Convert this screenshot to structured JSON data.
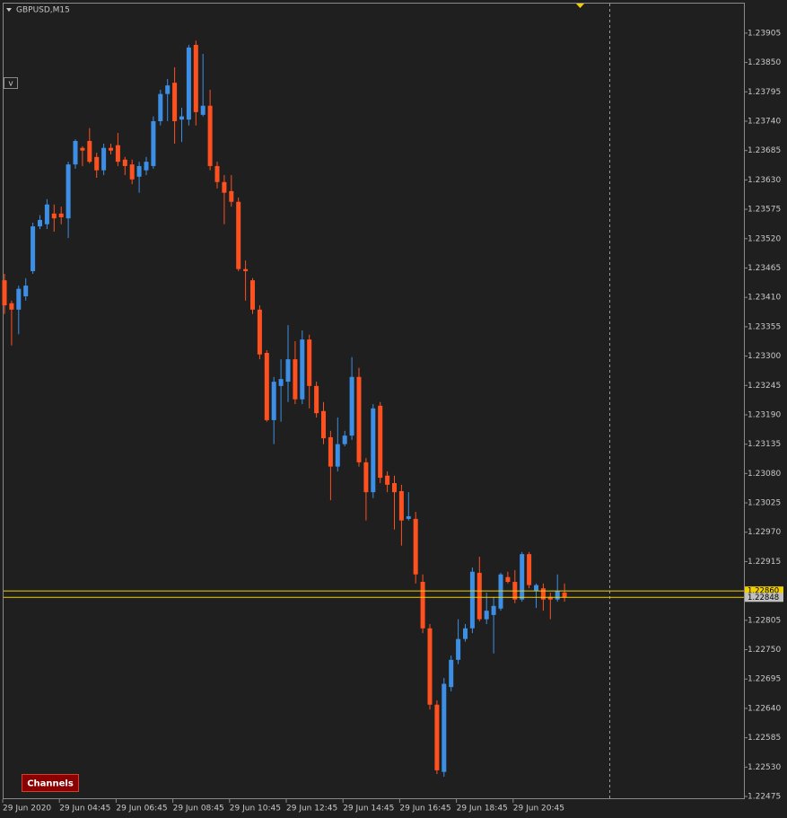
{
  "chart_data": {
    "type": "candlestick",
    "title": "GBPUSD,M15",
    "categories": [
      "29 Jun 2020",
      null,
      null,
      null,
      null,
      null,
      null,
      null,
      "29 Jun 04:45",
      null,
      null,
      null,
      null,
      null,
      null,
      null,
      "29 Jun 06:45",
      null,
      null,
      null,
      null,
      null,
      null,
      null,
      "29 Jun 08:45",
      null,
      null,
      null,
      null,
      null,
      null,
      null,
      "29 Jun 10:45",
      null,
      null,
      null,
      null,
      null,
      null,
      null,
      "29 Jun 12:45",
      null,
      null,
      null,
      null,
      null,
      null,
      null,
      "29 Jun 14:45",
      null,
      null,
      null,
      null,
      null,
      null,
      null,
      "29 Jun 16:45",
      null,
      null,
      null,
      null,
      null,
      null,
      null,
      "29 Jun 18:45",
      null,
      null,
      null,
      null,
      null,
      null,
      null,
      "29 Jun 20:45",
      null,
      null,
      null,
      null,
      null,
      null,
      null
    ],
    "open": [
      1.23442,
      1.23399,
      1.23387,
      1.23412,
      1.23459,
      1.23543,
      1.23547,
      1.23567,
      1.23567,
      1.23558,
      1.23659,
      1.2369,
      1.23703,
      1.23673,
      1.23648,
      1.2369,
      1.23695,
      1.23668,
      1.23659,
      1.23636,
      1.23648,
      1.23656,
      1.2374,
      1.23791,
      1.23812,
      1.23743,
      1.23743,
      1.23883,
      1.23752,
      1.23769,
      1.23656,
      1.23626,
      1.23609,
      1.23589,
      1.23463,
      1.23442,
      1.23387,
      1.23306,
      1.2318,
      1.23244,
      1.23252,
      1.23294,
      1.23219,
      1.23331,
      1.23244,
      1.23197,
      1.23148,
      1.23093,
      1.23135,
      1.23151,
      1.23261,
      1.23101,
      1.23045,
      1.23207,
      1.23076,
      1.23062,
      1.23047,
      1.22995,
      1.22995,
      1.22877,
      1.2279,
      1.22647,
      1.22521,
      1.2268,
      1.22731,
      1.2277,
      1.2279,
      1.22894,
      1.22807,
      1.22815,
      1.22827,
      1.22886,
      1.22877,
      1.22844,
      1.22929,
      1.2286,
      1.22865,
      1.22849,
      1.22844,
      1.22857
    ],
    "high": [
      1.23454,
      1.23404,
      1.23432,
      1.23446,
      1.2355,
      1.23564,
      1.23594,
      1.23584,
      1.2358,
      1.23664,
      1.23706,
      1.23693,
      1.23727,
      1.23681,
      1.23698,
      1.23698,
      1.23718,
      1.23673,
      1.23668,
      1.23664,
      1.23673,
      1.23749,
      1.23799,
      1.23819,
      1.23841,
      1.23765,
      1.23883,
      1.23891,
      1.23866,
      1.23799,
      1.23664,
      1.23639,
      1.23639,
      1.23597,
      1.23479,
      1.23446,
      1.23395,
      1.23311,
      1.23261,
      1.23294,
      1.23358,
      1.23328,
      1.23348,
      1.2334,
      1.23252,
      1.23214,
      1.2316,
      1.23185,
      1.2316,
      1.23298,
      1.23278,
      1.23109,
      1.2321,
      1.23214,
      1.23084,
      1.23076,
      1.23059,
      1.23045,
      1.23008,
      1.22891,
      1.22798,
      1.22655,
      1.22697,
      1.22739,
      1.22807,
      1.22798,
      1.22904,
      1.22924,
      1.22857,
      1.22849,
      1.22894,
      1.22896,
      1.22899,
      1.22933,
      1.22933,
      1.22874,
      1.22874,
      1.22857,
      1.22891,
      1.22874
    ],
    "low": [
      1.23379,
      1.2332,
      1.23341,
      1.23404,
      1.23454,
      1.23538,
      1.23538,
      1.23533,
      1.23547,
      1.23521,
      1.23651,
      1.23656,
      1.23661,
      1.23634,
      1.23639,
      1.23678,
      1.23656,
      1.23639,
      1.23622,
      1.23606,
      1.23639,
      1.23651,
      1.23732,
      1.2374,
      1.23698,
      1.23701,
      1.23732,
      1.23732,
      1.23749,
      1.23648,
      1.23614,
      1.23547,
      1.2358,
      1.23459,
      1.23404,
      1.23379,
      1.23294,
      1.23177,
      1.23135,
      1.23177,
      1.23214,
      1.2321,
      1.2321,
      1.23202,
      1.23185,
      1.23135,
      1.2303,
      1.23084,
      1.23131,
      1.23143,
      1.23093,
      1.22992,
      1.23034,
      1.23062,
      1.23045,
      1.22975,
      1.22945,
      1.22992,
      1.22874,
      1.22781,
      1.22638,
      1.22517,
      1.22512,
      1.22672,
      1.22723,
      1.22765,
      1.22781,
      1.22803,
      1.22798,
      1.22743,
      1.22823,
      1.22874,
      1.22837,
      1.2284,
      1.22865,
      1.22828,
      1.22823,
      1.22807,
      1.2284,
      1.2284
    ],
    "close": [
      1.23395,
      1.23387,
      1.23426,
      1.23432,
      1.23543,
      1.23555,
      1.23584,
      1.23558,
      1.2356,
      1.23659,
      1.23703,
      1.23685,
      1.23664,
      1.23648,
      1.2369,
      1.23685,
      1.23664,
      1.23656,
      1.23631,
      1.23656,
      1.23664,
      1.2374,
      1.23791,
      1.23807,
      1.2374,
      1.23749,
      1.23878,
      1.23757,
      1.23769,
      1.23656,
      1.23626,
      1.23606,
      1.23589,
      1.23463,
      1.23459,
      1.23387,
      1.23303,
      1.2318,
      1.23252,
      1.23257,
      1.23294,
      1.23219,
      1.23331,
      1.23244,
      1.23193,
      1.23146,
      1.23093,
      1.23135,
      1.23151,
      1.23261,
      1.23101,
      1.23045,
      1.23202,
      1.23072,
      1.23059,
      1.23045,
      1.22992,
      1.23,
      1.22891,
      1.2279,
      1.22647,
      1.22524,
      1.22686,
      1.22731,
      1.2277,
      1.2279,
      1.22896,
      1.22807,
      1.22823,
      1.22832,
      1.22891,
      1.22877,
      1.22844,
      1.22929,
      1.22871,
      1.22871,
      1.22844,
      1.22844,
      1.2286,
      1.22848
    ],
    "up_color": "#3d8fe6",
    "down_color": "#ff5020",
    "ylim": [
      1.2247,
      1.23962
    ],
    "yticks": [
      1.23905,
      {
        "value": 1.2385,
        "label": "1.23850"
      },
      1.23795,
      {
        "value": 1.2374,
        "label": "1.23740"
      },
      1.23685,
      {
        "value": 1.2363,
        "label": "1.23630"
      },
      1.23575,
      {
        "value": 1.2352,
        "label": "1.23520"
      },
      1.23465,
      {
        "value": 1.2341,
        "label": "1.23410"
      },
      1.23355,
      {
        "value": 1.233,
        "label": "1.23300"
      },
      1.23245,
      {
        "value": 1.2319,
        "label": "1.23190"
      },
      1.23135,
      {
        "value": 1.2308,
        "label": "1.23080"
      },
      1.23025,
      {
        "value": 1.2297,
        "label": "1.22970"
      },
      1.22915,
      1.22805,
      {
        "value": 1.2275,
        "label": "1.22750"
      },
      1.22695,
      {
        "value": 1.2264,
        "label": "1.22640"
      },
      1.22585,
      {
        "value": 1.2253,
        "label": "1.22530"
      },
      1.22475
    ],
    "grid": false,
    "price_lines": [
      {
        "value": 1.2286,
        "label": "1.22860",
        "color": "#f0d000",
        "label_color": "#f0d000"
      },
      {
        "value": 1.22848,
        "label": "1.22848",
        "color": "#f0d000",
        "label_color": "#c0c0c0"
      }
    ]
  },
  "controls": {
    "toggle": "v",
    "button": "Channels"
  }
}
